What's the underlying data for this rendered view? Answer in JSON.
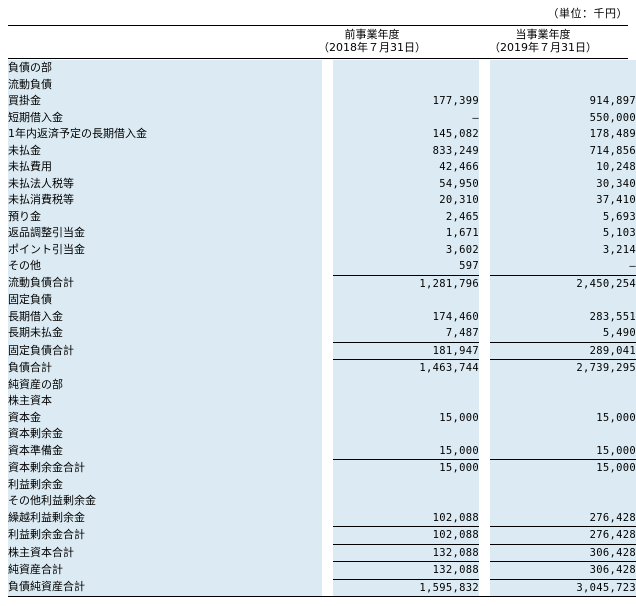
{
  "unit": "（単位：千円）",
  "columns": [
    {
      "line1": "前事業年度",
      "line2": "（2018年７月31日）"
    },
    {
      "line1": "当事業年度",
      "line2": "（2019年７月31日）"
    }
  ],
  "rows": [
    {
      "label": "負債の部",
      "indent": 0,
      "v1": "",
      "v2": ""
    },
    {
      "label": "流動負債",
      "indent": 1,
      "v1": "",
      "v2": ""
    },
    {
      "label": "買掛金",
      "indent": 2,
      "v1": "177,399",
      "v2": "914,897"
    },
    {
      "label": "短期借入金",
      "indent": 2,
      "v1": "―",
      "v2": "550,000"
    },
    {
      "label": "1年内返済予定の長期借入金",
      "indent": 2,
      "v1": "145,082",
      "v2": "178,489"
    },
    {
      "label": "未払金",
      "indent": 2,
      "v1": "833,249",
      "v2": "714,856"
    },
    {
      "label": "未払費用",
      "indent": 2,
      "v1": "42,466",
      "v2": "10,248"
    },
    {
      "label": "未払法人税等",
      "indent": 2,
      "v1": "54,950",
      "v2": "30,340"
    },
    {
      "label": "未払消費税等",
      "indent": 2,
      "v1": "20,310",
      "v2": "37,410"
    },
    {
      "label": "預り金",
      "indent": 2,
      "v1": "2,465",
      "v2": "5,693"
    },
    {
      "label": "返品調整引当金",
      "indent": 2,
      "v1": "1,671",
      "v2": "5,103"
    },
    {
      "label": "ポイント引当金",
      "indent": 2,
      "v1": "3,602",
      "v2": "3,214"
    },
    {
      "label": "その他",
      "indent": 2,
      "v1": "597",
      "v2": "―"
    },
    {
      "label": "流動負債合計",
      "indent": 2,
      "v1": "1,281,796",
      "v2": "2,450,254",
      "total": true
    },
    {
      "label": "固定負債",
      "indent": 1,
      "v1": "",
      "v2": ""
    },
    {
      "label": "長期借入金",
      "indent": 2,
      "v1": "174,460",
      "v2": "283,551"
    },
    {
      "label": "長期未払金",
      "indent": 2,
      "v1": "7,487",
      "v2": "5,490"
    },
    {
      "label": "固定負債合計",
      "indent": 2,
      "v1": "181,947",
      "v2": "289,041",
      "total": true
    },
    {
      "label": "負債合計",
      "indent": 1,
      "v1": "1,463,744",
      "v2": "2,739,295",
      "total": true
    },
    {
      "label": "純資産の部",
      "indent": 0,
      "v1": "",
      "v2": ""
    },
    {
      "label": "株主資本",
      "indent": 1,
      "v1": "",
      "v2": ""
    },
    {
      "label": "資本金",
      "indent": 2,
      "v1": "15,000",
      "v2": "15,000"
    },
    {
      "label": "資本剰余金",
      "indent": 2,
      "v1": "",
      "v2": ""
    },
    {
      "label": "資本準備金",
      "indent": 4,
      "v1": "15,000",
      "v2": "15,000"
    },
    {
      "label": "資本剰余金合計",
      "indent": 4,
      "v1": "15,000",
      "v2": "15,000",
      "total": true
    },
    {
      "label": "利益剰余金",
      "indent": 2,
      "v1": "",
      "v2": ""
    },
    {
      "label": "その他利益剰余金",
      "indent": 4,
      "v1": "",
      "v2": ""
    },
    {
      "label": "繰越利益剰余金",
      "indent": 5,
      "v1": "102,088",
      "v2": "276,428"
    },
    {
      "label": "利益剰余金合計",
      "indent": 4,
      "v1": "102,088",
      "v2": "276,428",
      "total": true
    },
    {
      "label": "株主資本合計",
      "indent": 3,
      "v1": "132,088",
      "v2": "306,428",
      "total": true
    },
    {
      "label": "純資産合計",
      "indent": 1,
      "v1": "132,088",
      "v2": "306,428",
      "total": true
    },
    {
      "label": "負債純資産合計",
      "indent": 0,
      "v1": "1,595,832",
      "v2": "3,045,723",
      "total": true,
      "final": true
    }
  ]
}
